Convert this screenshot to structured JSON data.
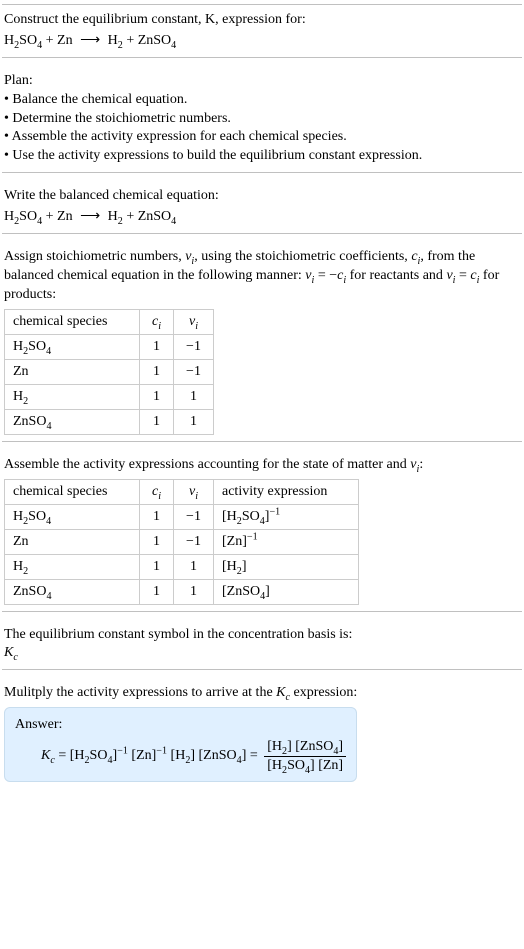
{
  "intro": {
    "line1": "Construct the equilibrium constant, K, expression for:",
    "equation_html": "H<sub>2</sub>SO<sub>4</sub> + Zn&nbsp;<span class='arrow'>&#10230;</span>&nbsp;H<sub>2</sub> + ZnSO<sub>4</sub>"
  },
  "plan": {
    "title": "Plan:",
    "bullets": [
      "Balance the chemical equation.",
      "Determine the stoichiometric numbers.",
      "Assemble the activity expression for each chemical species.",
      "Use the activity expressions to build the equilibrium constant expression."
    ]
  },
  "balanced": {
    "title": "Write the balanced chemical equation:",
    "equation_html": "H<sub>2</sub>SO<sub>4</sub> + Zn&nbsp;<span class='arrow'>&#10230;</span>&nbsp;H<sub>2</sub> + ZnSO<sub>4</sub>"
  },
  "stoich": {
    "intro_html": "Assign stoichiometric numbers, <span class='italic'>&nu;<sub>i</sub></span>, using the stoichiometric coefficients, <span class='italic'>c<sub>i</sub></span>, from the balanced chemical equation in the following manner: <span class='italic'>&nu;<sub>i</sub></span> = &minus;<span class='italic'>c<sub>i</sub></span> for reactants and <span class='italic'>&nu;<sub>i</sub></span> = <span class='italic'>c<sub>i</sub></span> for products:",
    "headers": [
      "chemical species",
      "<span class='italic'>c<sub>i</sub></span>",
      "<span class='italic'>&nu;<sub>i</sub></span>"
    ],
    "rows": [
      [
        "H<sub>2</sub>SO<sub>4</sub>",
        "1",
        "&minus;1"
      ],
      [
        "Zn",
        "1",
        "&minus;1"
      ],
      [
        "H<sub>2</sub>",
        "1",
        "1"
      ],
      [
        "ZnSO<sub>4</sub>",
        "1",
        "1"
      ]
    ]
  },
  "activity": {
    "intro_html": "Assemble the activity expressions accounting for the state of matter and <span class='italic'>&nu;<sub>i</sub></span>:",
    "headers": [
      "chemical species",
      "<span class='italic'>c<sub>i</sub></span>",
      "<span class='italic'>&nu;<sub>i</sub></span>",
      "activity expression"
    ],
    "rows": [
      [
        "H<sub>2</sub>SO<sub>4</sub>",
        "1",
        "&minus;1",
        "[H<sub>2</sub>SO<sub>4</sub>]<sup>&minus;1</sup>"
      ],
      [
        "Zn",
        "1",
        "&minus;1",
        "[Zn]<sup>&minus;1</sup>"
      ],
      [
        "H<sub>2</sub>",
        "1",
        "1",
        "[H<sub>2</sub>]"
      ],
      [
        "ZnSO<sub>4</sub>",
        "1",
        "1",
        "[ZnSO<sub>4</sub>]"
      ]
    ]
  },
  "kcsymbol": {
    "line1": "The equilibrium constant symbol in the concentration basis is:",
    "symbol_html": "<span class='italic'>K<sub>c</sub></span>"
  },
  "final": {
    "intro_html": "Mulitply the activity expressions to arrive at the <span class='italic'>K<sub>c</sub></span> expression:",
    "answer_label": "Answer:",
    "kc_html": "<span class='italic'>K<sub>c</sub></span> = [H<sub>2</sub>SO<sub>4</sub>]<sup>&minus;1</sup> [Zn]<sup>&minus;1</sup> [H<sub>2</sub>] [ZnSO<sub>4</sub>] = <span class='frac'><span class='num'>[H<sub>2</sub>] [ZnSO<sub>4</sub>]</span><span class='den'>[H<sub>2</sub>SO<sub>4</sub>] [Zn]</span></span>"
  }
}
